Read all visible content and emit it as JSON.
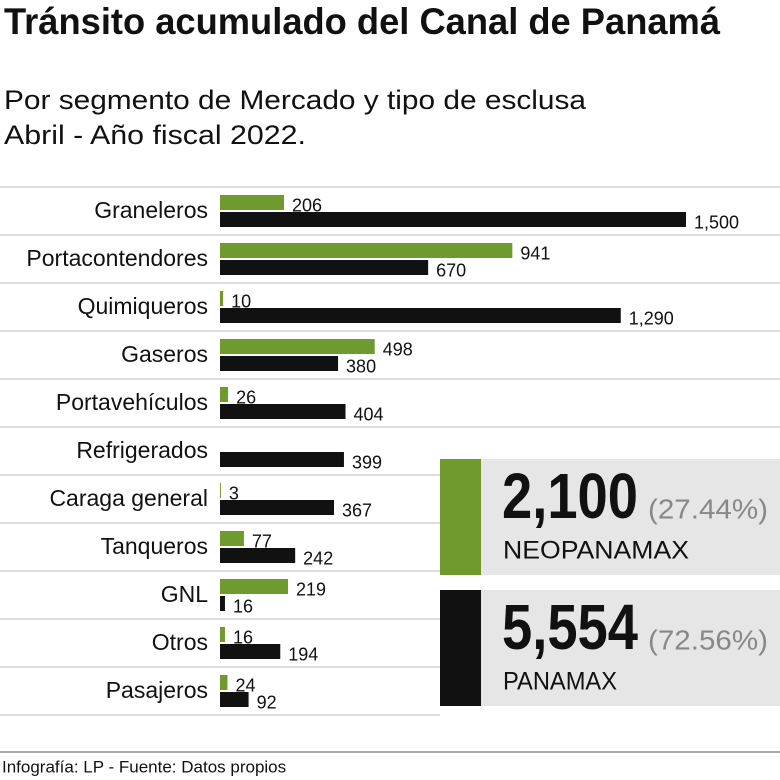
{
  "chart_data": {
    "type": "hbar",
    "title": "Tránsito acumulado del Canal de Panamá",
    "subtitle": [
      "Por segmento de Mercado y tipo de esclusa",
      "Abril - Año fiscal 2022."
    ],
    "categories": [
      "Graneleros",
      "Portacontendores",
      "Quimiqueros",
      "Gaseros",
      "Portavehículos",
      "Refrigerados",
      "Caraga general",
      "Tanqueros",
      "GNL",
      "Otros",
      "Pasajeros"
    ],
    "series": [
      {
        "name": "NEOPANAMAX",
        "color": "#6f9a2e",
        "values": [
          206,
          941,
          10,
          498,
          26,
          null,
          3,
          77,
          219,
          16,
          24
        ],
        "total": "2,100",
        "share": "(27.44%)"
      },
      {
        "name": "PANAMAX",
        "color": "#111111",
        "values": [
          1500,
          670,
          1290,
          380,
          404,
          399,
          367,
          242,
          16,
          194,
          92
        ],
        "value_labels": [
          "1,500",
          "670",
          "1,290",
          "380",
          "404",
          "399",
          "367",
          "242",
          "16",
          "194",
          "92"
        ],
        "total": "5,554",
        "share": "(72.56%)"
      }
    ],
    "source": "Infografía: LP - Fuente: Datos propios"
  }
}
